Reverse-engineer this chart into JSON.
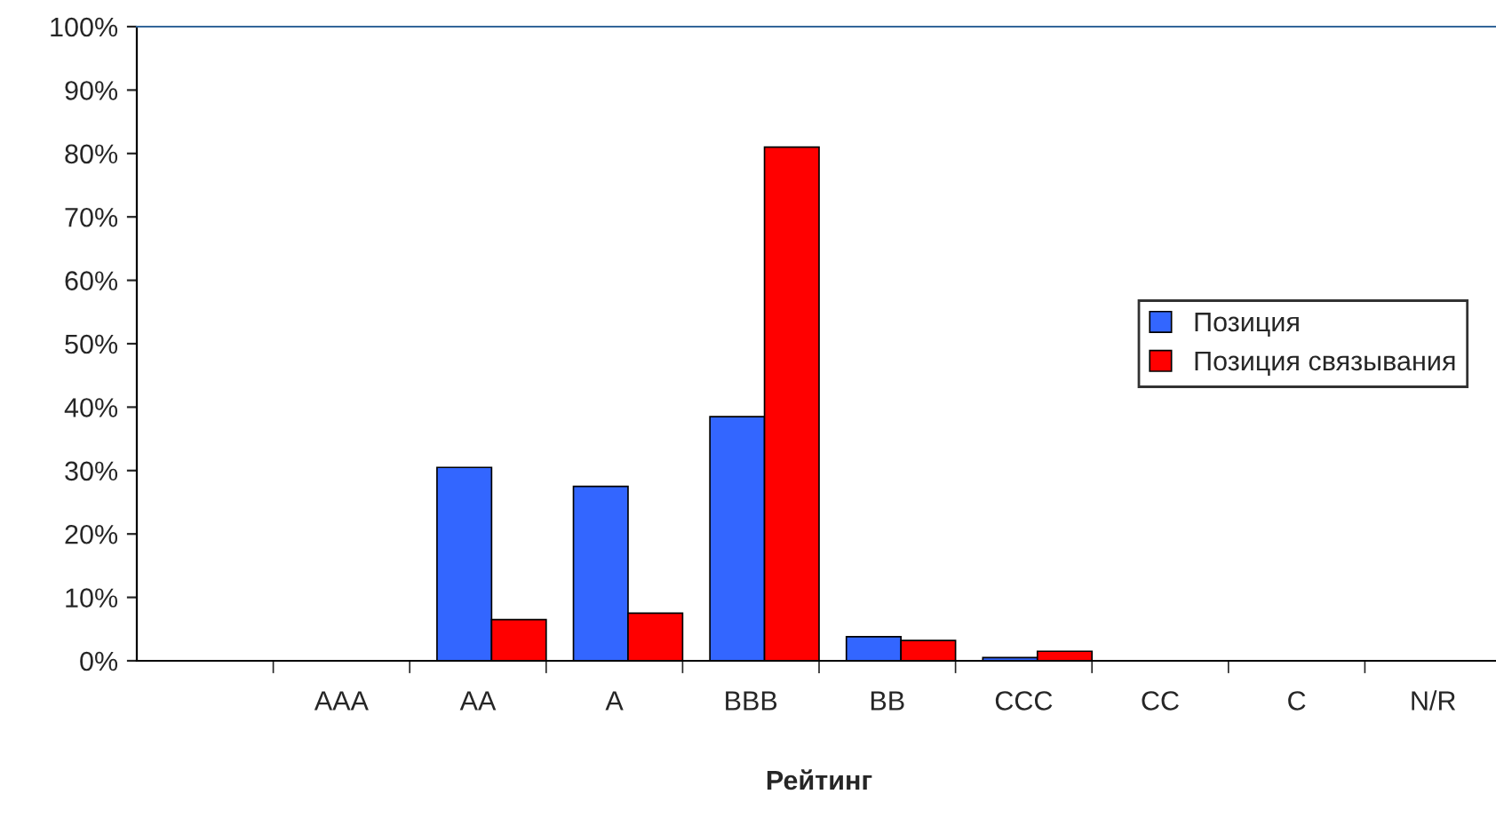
{
  "chart_data": {
    "type": "bar",
    "xlabel": "Рейтинг",
    "categories": [
      null,
      "AAA",
      "AA",
      "A",
      "BBB",
      "BB",
      "CCC",
      "CC",
      "C",
      "N/R"
    ],
    "series": [
      {
        "name": "Позиция",
        "color": "#3366ff",
        "values": [
          null,
          null,
          30.5,
          27.5,
          38.5,
          3.8,
          0.5,
          null,
          null,
          null
        ]
      },
      {
        "name": "Позиция связывания",
        "color": "#ff0000",
        "values": [
          null,
          null,
          6.5,
          7.5,
          81,
          3.2,
          1.5,
          null,
          null,
          null
        ]
      }
    ],
    "ylim": [
      0,
      100
    ],
    "yticks": [
      {
        "value": 0,
        "label": "0%"
      },
      {
        "value": 10,
        "label": "10%"
      },
      {
        "value": 20,
        "label": "20%"
      },
      {
        "value": 30,
        "label": "30%"
      },
      {
        "value": 40,
        "label": "40%"
      },
      {
        "value": 50,
        "label": "50%"
      },
      {
        "value": 60,
        "label": "60%"
      },
      {
        "value": 70,
        "label": "70%"
      },
      {
        "value": 80,
        "label": "80%"
      },
      {
        "value": 90,
        "label": "90%"
      },
      {
        "value": 100,
        "label": "100%"
      }
    ],
    "grid": false,
    "legend": "right"
  }
}
